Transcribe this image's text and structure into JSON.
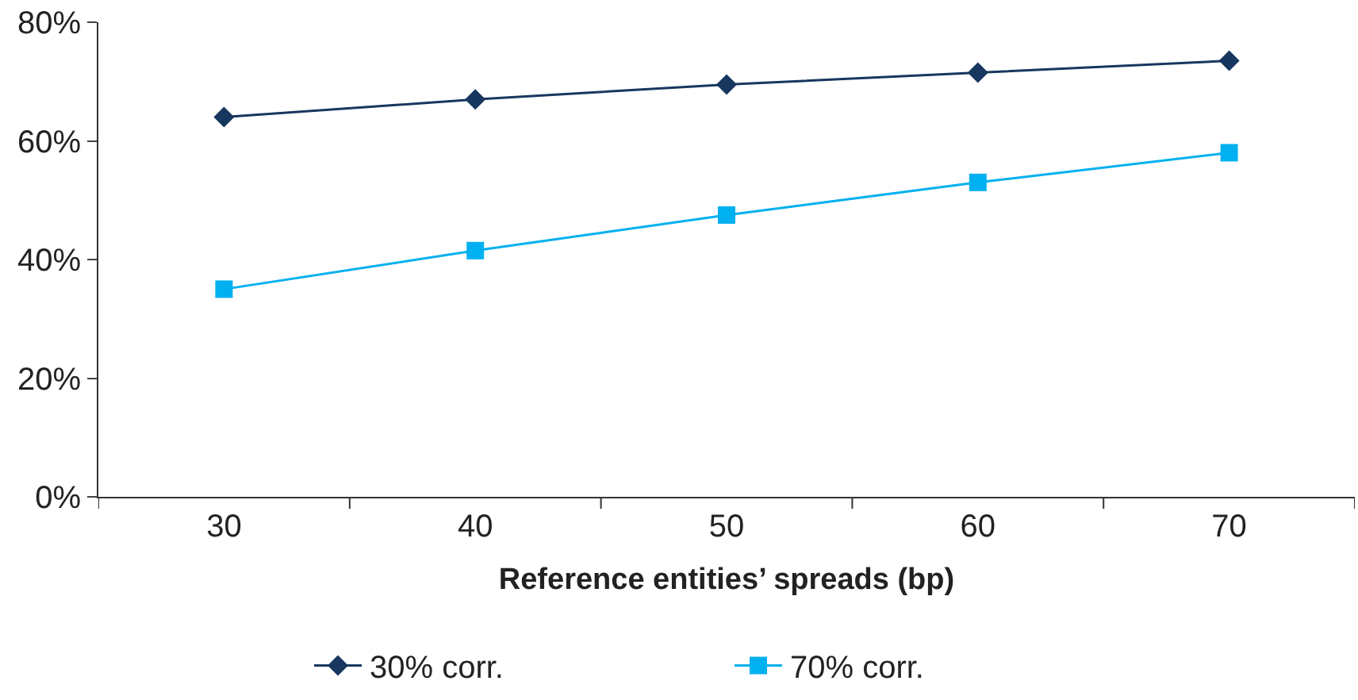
{
  "chart_data": {
    "type": "line",
    "xlabel": "Reference entities’ spreads (bp)",
    "categories": [
      "30",
      "40",
      "50",
      "60",
      "70"
    ],
    "series": [
      {
        "name": "30% corr.",
        "color": "#17375e",
        "marker": "diamond",
        "values": [
          64,
          67,
          69.5,
          71.5,
          73.5
        ]
      },
      {
        "name": "70% corr.",
        "color": "#00b0f0",
        "marker": "square",
        "values": [
          35,
          41.5,
          47.5,
          53,
          58
        ]
      }
    ],
    "ylim": [
      0,
      80
    ],
    "yticks": [
      {
        "value": 0,
        "label": "0%"
      },
      {
        "value": 20,
        "label": "20%"
      },
      {
        "value": 40,
        "label": "40%"
      },
      {
        "value": 60,
        "label": "60%"
      },
      {
        "value": 80,
        "label": "80%"
      }
    ],
    "legend": "bottom",
    "line_style": "solid"
  }
}
